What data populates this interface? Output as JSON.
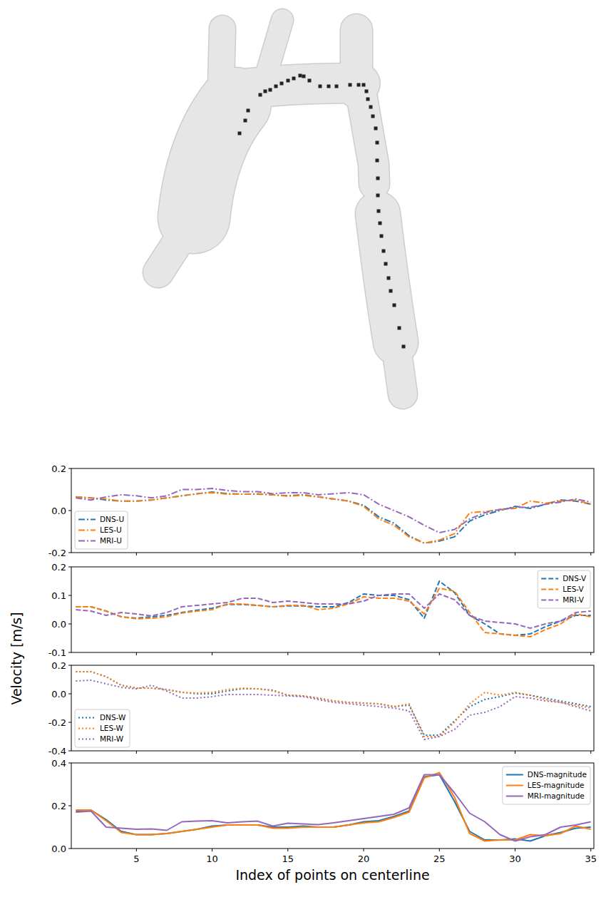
{
  "figure": {
    "y_label": "Velocity [m/s]"
  },
  "chart_data": [
    {
      "type": "line",
      "tick_labels": "y",
      "legend": "lower left",
      "x": [
        1,
        2,
        3,
        4,
        5,
        6,
        7,
        8,
        9,
        10,
        11,
        12,
        13,
        14,
        15,
        16,
        17,
        18,
        19,
        20,
        21,
        22,
        23,
        24,
        25,
        26,
        27,
        28,
        29,
        30,
        31,
        32,
        33,
        34,
        35
      ],
      "xlim": [
        0.7,
        35.2
      ],
      "xticks": [
        5,
        10,
        15,
        20,
        25,
        30,
        35
      ],
      "ylim": [
        -0.2,
        0.2
      ],
      "yticks": [
        -0.2,
        {
          "value": 0,
          "label": "0.0"
        },
        0.2
      ],
      "series": [
        {
          "name": "DNS-U",
          "color": "#1f77b4",
          "line_style": "dashdot",
          "values": [
            0.065,
            0.06,
            0.05,
            0.045,
            0.045,
            0.05,
            0.06,
            0.07,
            0.08,
            0.088,
            0.08,
            0.078,
            0.078,
            0.075,
            0.07,
            0.075,
            0.065,
            0.055,
            0.045,
            0.025,
            -0.03,
            -0.06,
            -0.12,
            -0.155,
            -0.145,
            -0.125,
            -0.05,
            -0.02,
            0.0,
            0.02,
            0.01,
            0.03,
            0.05,
            0.045,
            0.03
          ]
        },
        {
          "name": "LES-U",
          "color": "#ff7f0e",
          "line_style": "dashdot",
          "values": [
            0.065,
            0.06,
            0.055,
            0.045,
            0.045,
            0.05,
            0.06,
            0.07,
            0.08,
            0.085,
            0.078,
            0.078,
            0.08,
            0.075,
            0.068,
            0.072,
            0.065,
            0.055,
            0.045,
            0.02,
            -0.04,
            -0.07,
            -0.125,
            -0.155,
            -0.14,
            -0.11,
            -0.01,
            -0.005,
            0.005,
            0.01,
            0.045,
            0.035,
            0.045,
            0.05,
            0.03
          ]
        },
        {
          "name": "MRI-U",
          "color": "#9467bd",
          "line_style": "dashdot",
          "values": [
            0.06,
            0.05,
            0.065,
            0.075,
            0.07,
            0.06,
            0.07,
            0.1,
            0.1,
            0.105,
            0.095,
            0.09,
            0.09,
            0.08,
            0.085,
            0.085,
            0.075,
            0.08,
            0.085,
            0.075,
            0.03,
            0.0,
            -0.03,
            -0.07,
            -0.105,
            -0.09,
            -0.04,
            -0.01,
            0.005,
            0.015,
            0.015,
            0.03,
            0.04,
            0.055,
            0.04
          ]
        }
      ]
    },
    {
      "type": "line",
      "tick_labels": "y",
      "legend": "upper right",
      "x": [
        1,
        2,
        3,
        4,
        5,
        6,
        7,
        8,
        9,
        10,
        11,
        12,
        13,
        14,
        15,
        16,
        17,
        18,
        19,
        20,
        21,
        22,
        23,
        24,
        25,
        26,
        27,
        28,
        29,
        30,
        31,
        32,
        33,
        34,
        35
      ],
      "xlim": [
        0.7,
        35.2
      ],
      "xticks": [
        5,
        10,
        15,
        20,
        25,
        30,
        35
      ],
      "ylim": [
        -0.1,
        0.2
      ],
      "yticks": [
        -0.1,
        {
          "value": 0,
          "label": "0.0"
        },
        0.1,
        0.2
      ],
      "series": [
        {
          "name": "DNS-V",
          "color": "#1f77b4",
          "line_style": "dashed",
          "values": [
            0.06,
            0.06,
            0.045,
            0.025,
            0.02,
            0.025,
            0.03,
            0.04,
            0.048,
            0.055,
            0.068,
            0.068,
            0.065,
            0.06,
            0.063,
            0.063,
            0.06,
            0.06,
            0.075,
            0.105,
            0.1,
            0.1,
            0.085,
            0.02,
            0.15,
            0.11,
            0.03,
            0.0,
            -0.035,
            -0.04,
            -0.035,
            -0.01,
            0.01,
            0.03,
            0.03
          ]
        },
        {
          "name": "LES-V",
          "color": "#ff7f0e",
          "line_style": "dashed",
          "values": [
            0.06,
            0.06,
            0.045,
            0.025,
            0.018,
            0.02,
            0.025,
            0.038,
            0.045,
            0.05,
            0.07,
            0.07,
            0.065,
            0.06,
            0.065,
            0.065,
            0.05,
            0.055,
            0.07,
            0.095,
            0.09,
            0.09,
            0.08,
            0.035,
            0.125,
            0.115,
            0.04,
            -0.03,
            -0.035,
            -0.04,
            -0.045,
            -0.02,
            0.0,
            0.035,
            0.025
          ]
        },
        {
          "name": "MRI-V",
          "color": "#9467bd",
          "line_style": "dashed",
          "values": [
            0.05,
            0.045,
            0.03,
            0.04,
            0.035,
            0.028,
            0.04,
            0.06,
            0.065,
            0.07,
            0.075,
            0.09,
            0.09,
            0.075,
            0.08,
            0.075,
            0.07,
            0.07,
            0.07,
            0.08,
            0.1,
            0.105,
            0.105,
            0.055,
            0.105,
            0.085,
            0.03,
            0.01,
            0.005,
            0.0,
            -0.015,
            0.0,
            0.01,
            0.04,
            0.045
          ]
        }
      ]
    },
    {
      "type": "line",
      "tick_labels": "y",
      "legend": "lower left",
      "x": [
        1,
        2,
        3,
        4,
        5,
        6,
        7,
        8,
        9,
        10,
        11,
        12,
        13,
        14,
        15,
        16,
        17,
        18,
        19,
        20,
        21,
        22,
        23,
        24,
        25,
        26,
        27,
        28,
        29,
        30,
        31,
        32,
        33,
        34,
        35
      ],
      "xlim": [
        0.7,
        35.2
      ],
      "xticks": [
        5,
        10,
        15,
        20,
        25,
        30,
        35
      ],
      "ylim": [
        -0.4,
        0.2
      ],
      "yticks": [
        -0.4,
        -0.2,
        {
          "value": 0,
          "label": "0.0"
        },
        0.2
      ],
      "series": [
        {
          "name": "DNS-W",
          "color": "#1f77b4",
          "line_style": "dotted",
          "values": [
            0.155,
            0.155,
            0.12,
            0.06,
            0.04,
            0.04,
            0.03,
            0.01,
            0.0,
            0.0,
            0.02,
            0.035,
            0.035,
            0.025,
            -0.01,
            -0.015,
            -0.03,
            -0.05,
            -0.06,
            -0.065,
            -0.07,
            -0.09,
            -0.08,
            -0.29,
            -0.29,
            -0.19,
            -0.09,
            -0.04,
            -0.02,
            0.005,
            -0.01,
            -0.03,
            -0.05,
            -0.07,
            -0.09
          ]
        },
        {
          "name": "LES-W",
          "color": "#ff7f0e",
          "line_style": "dotted",
          "values": [
            0.155,
            0.155,
            0.12,
            0.06,
            0.04,
            0.04,
            0.03,
            0.01,
            0.005,
            0.01,
            0.03,
            0.04,
            0.035,
            0.02,
            -0.01,
            -0.015,
            -0.03,
            -0.05,
            -0.06,
            -0.065,
            -0.07,
            -0.09,
            -0.07,
            -0.3,
            -0.3,
            -0.2,
            -0.07,
            0.01,
            -0.01,
            0.01,
            -0.01,
            -0.04,
            -0.06,
            -0.08,
            -0.1
          ]
        },
        {
          "name": "MRI-W",
          "color": "#9467bd",
          "line_style": "dotted",
          "values": [
            0.09,
            0.095,
            0.07,
            0.045,
            0.035,
            0.06,
            0.02,
            -0.03,
            -0.03,
            -0.02,
            -0.005,
            -0.005,
            -0.005,
            -0.01,
            -0.015,
            -0.02,
            -0.04,
            -0.06,
            -0.07,
            -0.08,
            -0.09,
            -0.1,
            -0.12,
            -0.32,
            -0.3,
            -0.25,
            -0.15,
            -0.13,
            -0.09,
            -0.02,
            -0.03,
            -0.05,
            -0.06,
            -0.09,
            -0.12
          ]
        }
      ]
    },
    {
      "type": "line",
      "legend": "upper right",
      "x_label": "Index of points on centerline",
      "x": [
        1,
        2,
        3,
        4,
        5,
        6,
        7,
        8,
        9,
        10,
        11,
        12,
        13,
        14,
        15,
        16,
        17,
        18,
        19,
        20,
        21,
        22,
        23,
        24,
        25,
        26,
        27,
        28,
        29,
        30,
        31,
        32,
        33,
        34,
        35
      ],
      "xlim": [
        0.7,
        35.2
      ],
      "xticks": [
        5,
        10,
        15,
        20,
        25,
        30,
        35
      ],
      "ylim": [
        0,
        0.4
      ],
      "yticks": [
        {
          "value": 0,
          "label": "0.0"
        },
        0.2,
        0.4
      ],
      "series": [
        {
          "name": "DNS-magnitude",
          "color": "#1f77b4",
          "line_style": "solid",
          "values": [
            0.175,
            0.18,
            0.135,
            0.08,
            0.065,
            0.065,
            0.07,
            0.08,
            0.09,
            0.105,
            0.11,
            0.11,
            0.11,
            0.1,
            0.1,
            0.105,
            0.1,
            0.1,
            0.11,
            0.125,
            0.13,
            0.15,
            0.175,
            0.335,
            0.345,
            0.22,
            0.08,
            0.04,
            0.04,
            0.045,
            0.035,
            0.06,
            0.075,
            0.095,
            0.1
          ]
        },
        {
          "name": "LES-magnitude",
          "color": "#ff7f0e",
          "line_style": "solid",
          "values": [
            0.18,
            0.18,
            0.13,
            0.075,
            0.065,
            0.065,
            0.07,
            0.08,
            0.09,
            0.1,
            0.11,
            0.11,
            0.11,
            0.095,
            0.095,
            0.1,
            0.1,
            0.1,
            0.11,
            0.12,
            0.125,
            0.145,
            0.17,
            0.33,
            0.355,
            0.24,
            0.07,
            0.035,
            0.04,
            0.04,
            0.065,
            0.06,
            0.07,
            0.105,
            0.09
          ]
        },
        {
          "name": "MRI-magnitude",
          "color": "#9467bd",
          "line_style": "solid",
          "values": [
            0.17,
            0.175,
            0.1,
            0.095,
            0.09,
            0.092,
            0.085,
            0.125,
            0.128,
            0.13,
            0.12,
            0.125,
            0.128,
            0.105,
            0.118,
            0.115,
            0.112,
            0.12,
            0.13,
            0.14,
            0.15,
            0.16,
            0.19,
            0.345,
            0.345,
            0.26,
            0.165,
            0.125,
            0.065,
            0.035,
            0.055,
            0.065,
            0.1,
            0.11,
            0.125
          ]
        }
      ]
    }
  ]
}
